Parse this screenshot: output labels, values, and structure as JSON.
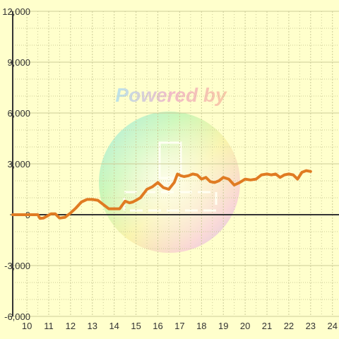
{
  "chart_data": {
    "type": "line",
    "title": "",
    "xlabel": "",
    "ylabel": "",
    "xlim": [
      9.35,
      24.3
    ],
    "ylim": [
      -6000,
      12000
    ],
    "x_ticks": [
      10,
      11,
      12,
      13,
      14,
      15,
      16,
      17,
      18,
      19,
      20,
      21,
      22,
      23,
      24
    ],
    "x_tick_labels": [
      "10",
      "11",
      "12",
      "13",
      "14",
      "15",
      "16",
      "17",
      "18",
      "19",
      "20",
      "21",
      "22",
      "23",
      "24"
    ],
    "y_ticks": [
      -6000,
      -3000,
      0,
      3000,
      6000,
      9000,
      12000
    ],
    "y_tick_labels": [
      "-6,000",
      "-3,000",
      "0",
      "3,000",
      "6,000",
      "9,000",
      "12,000"
    ],
    "grid": true,
    "colors": {
      "background": "#ffffcc",
      "line": "#e07b22",
      "grid": "#cccc99",
      "axis": "#333333"
    },
    "watermark": "Powered by",
    "series": [
      {
        "x": [
          9.35,
          9.5,
          9.75,
          10.0,
          10.25,
          10.5,
          10.6,
          10.75,
          10.9,
          11.1,
          11.3,
          11.5,
          11.75,
          12.0,
          12.25,
          12.5,
          12.75,
          13.0,
          13.25,
          13.5,
          13.75,
          14.0,
          14.25,
          14.5,
          14.7,
          14.85,
          15.0,
          15.2,
          15.5,
          15.75,
          16.0,
          16.25,
          16.5,
          16.75,
          16.9,
          17.05,
          17.2,
          17.4,
          17.6,
          17.8,
          18.0,
          18.2,
          18.4,
          18.6,
          18.8,
          19.0,
          19.25,
          19.5,
          19.75,
          20.0,
          20.25,
          20.5,
          20.75,
          21.0,
          21.2,
          21.4,
          21.6,
          21.8,
          22.0,
          22.2,
          22.4,
          22.6,
          22.8,
          23.0
        ],
        "y": [
          0,
          0,
          0,
          0,
          0,
          0,
          -220,
          -200,
          -100,
          50,
          50,
          -200,
          -150,
          100,
          400,
          750,
          900,
          900,
          850,
          600,
          350,
          350,
          350,
          800,
          700,
          750,
          850,
          1000,
          1500,
          1650,
          1900,
          1600,
          1500,
          1900,
          2400,
          2300,
          2250,
          2300,
          2400,
          2350,
          2100,
          2200,
          1950,
          1900,
          2000,
          2200,
          2100,
          1750,
          1900,
          2100,
          2050,
          2100,
          2350,
          2400,
          2350,
          2400,
          2200,
          2350,
          2400,
          2350,
          2100,
          2500,
          2600,
          2550
        ]
      }
    ]
  }
}
